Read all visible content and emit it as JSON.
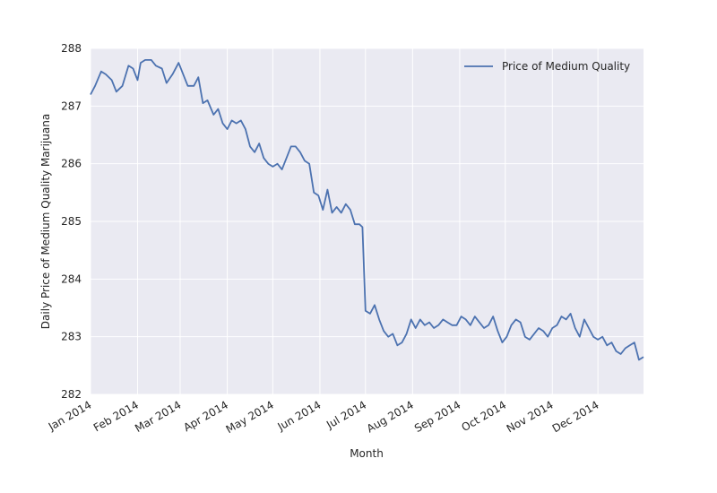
{
  "chart_data": {
    "type": "line",
    "x_label": "Month",
    "y_label": "Daily Price of Medium Quality Marijuana",
    "x": [
      0,
      3,
      7,
      10,
      14,
      17,
      21,
      25,
      28,
      31,
      33,
      36,
      40,
      43,
      47,
      50,
      54,
      58,
      61,
      64,
      68,
      71,
      74,
      77,
      81,
      84,
      87,
      90,
      93,
      96,
      99,
      102,
      105,
      108,
      111,
      114,
      117,
      120,
      123,
      126,
      129,
      132,
      135,
      138,
      141,
      144,
      147,
      150,
      153,
      156,
      159,
      162,
      165,
      168,
      171,
      174,
      177,
      179,
      181,
      184,
      187,
      190,
      193,
      196,
      199,
      202,
      205,
      208,
      211,
      214,
      217,
      220,
      223,
      226,
      229,
      232,
      235,
      238,
      241,
      244,
      247,
      250,
      253,
      256,
      259,
      262,
      265,
      268,
      271,
      274,
      277,
      280,
      283,
      286,
      289,
      292,
      295,
      298,
      301,
      304,
      307,
      310,
      313,
      316,
      319,
      322,
      325,
      328,
      331,
      334,
      337,
      340,
      343,
      346,
      349,
      352,
      355,
      358,
      361,
      364
    ],
    "series": [
      {
        "name": "Price of Medium Quality",
        "color": "#4c72b0",
        "values": [
          287.2,
          287.35,
          287.6,
          287.55,
          287.45,
          287.25,
          287.35,
          287.7,
          287.65,
          287.45,
          287.75,
          287.8,
          287.8,
          287.7,
          287.65,
          287.4,
          287.55,
          287.75,
          287.55,
          287.35,
          287.35,
          287.5,
          287.05,
          287.1,
          286.85,
          286.95,
          286.7,
          286.6,
          286.75,
          286.7,
          286.75,
          286.6,
          286.3,
          286.2,
          286.35,
          286.1,
          286.0,
          285.95,
          286.0,
          285.9,
          286.1,
          286.3,
          286.3,
          286.2,
          286.05,
          286.0,
          285.5,
          285.45,
          285.2,
          285.55,
          285.15,
          285.25,
          285.15,
          285.3,
          285.2,
          284.95,
          284.95,
          284.9,
          283.45,
          283.4,
          283.55,
          283.3,
          283.1,
          283.0,
          283.05,
          282.85,
          282.9,
          283.05,
          283.3,
          283.15,
          283.3,
          283.2,
          283.25,
          283.15,
          283.2,
          283.3,
          283.25,
          283.2,
          283.2,
          283.35,
          283.3,
          283.2,
          283.35,
          283.25,
          283.15,
          283.2,
          283.35,
          283.1,
          282.9,
          283.0,
          283.2,
          283.3,
          283.25,
          283.0,
          282.95,
          283.05,
          283.15,
          283.1,
          283.0,
          283.15,
          283.2,
          283.35,
          283.3,
          283.4,
          283.15,
          283.0,
          283.3,
          283.15,
          283.0,
          282.95,
          283.0,
          282.85,
          282.9,
          282.75,
          282.7,
          282.8,
          282.85,
          282.9,
          282.6,
          282.65
        ]
      }
    ],
    "xlim": [
      0,
      364
    ],
    "xticks": [
      {
        "value": 0,
        "label": "Jan 2014"
      },
      {
        "value": 31,
        "label": "Feb 2014"
      },
      {
        "value": 59,
        "label": "Mar 2014"
      },
      {
        "value": 90,
        "label": "Apr 2014"
      },
      {
        "value": 120,
        "label": "May 2014"
      },
      {
        "value": 151,
        "label": "Jun 2014"
      },
      {
        "value": 181,
        "label": "Jul 2014"
      },
      {
        "value": 212,
        "label": "Aug 2014"
      },
      {
        "value": 243,
        "label": "Sep 2014"
      },
      {
        "value": 273,
        "label": "Oct 2014"
      },
      {
        "value": 304,
        "label": "Nov 2014"
      },
      {
        "value": 334,
        "label": "Dec 2014"
      }
    ],
    "ylim": [
      282,
      288
    ],
    "yticks": [
      282,
      283,
      284,
      285,
      286,
      287,
      288
    ],
    "grid": true,
    "legend": "upper right"
  }
}
